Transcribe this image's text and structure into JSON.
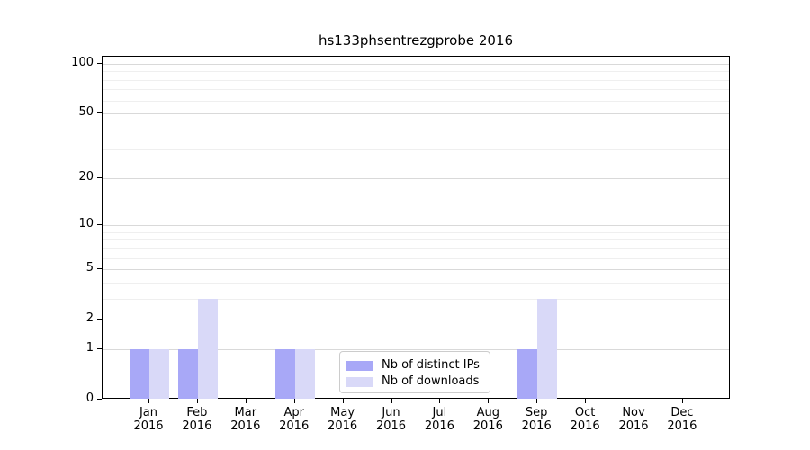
{
  "title": "hs133phsentrezgprobe 2016",
  "colors": {
    "distinct_ips_bar": "#a8a8f7",
    "downloads_bar": "#d9d9f8",
    "grid_major": "#d9d9d9",
    "grid_minor": "#efefef",
    "spine": "#000000"
  },
  "legend": {
    "items": [
      {
        "label": "Nb of distinct IPs",
        "color": "#a8a8f7"
      },
      {
        "label": "Nb of downloads",
        "color": "#d9d9f8"
      }
    ]
  },
  "chart_data": {
    "type": "bar",
    "title": "hs133phsentrezgprobe 2016",
    "categories": [
      "Jan 2016",
      "Feb 2016",
      "Mar 2016",
      "Apr 2016",
      "May 2016",
      "Jun 2016",
      "Jul 2016",
      "Aug 2016",
      "Sep 2016",
      "Oct 2016",
      "Nov 2016",
      "Dec 2016"
    ],
    "series": [
      {
        "name": "Nb of distinct IPs",
        "color": "#a8a8f7",
        "values": [
          1,
          1,
          0,
          1,
          0,
          0,
          0,
          0,
          1,
          0,
          0,
          0
        ]
      },
      {
        "name": "Nb of downloads",
        "color": "#d9d9f8",
        "values": [
          1,
          3,
          0,
          1,
          0,
          0,
          0,
          0,
          3,
          0,
          0,
          0
        ]
      }
    ],
    "xlabel": "",
    "ylabel": "",
    "y_scale": "log1p",
    "ylim": [
      0,
      100
    ],
    "y_major_ticks": [
      0,
      1,
      2,
      5,
      10,
      20,
      50,
      100
    ],
    "y_minor_ticks": [
      3,
      4,
      6,
      7,
      8,
      9,
      30,
      40,
      60,
      70,
      80,
      90
    ],
    "grid": "on",
    "legend_position": "lower center"
  }
}
